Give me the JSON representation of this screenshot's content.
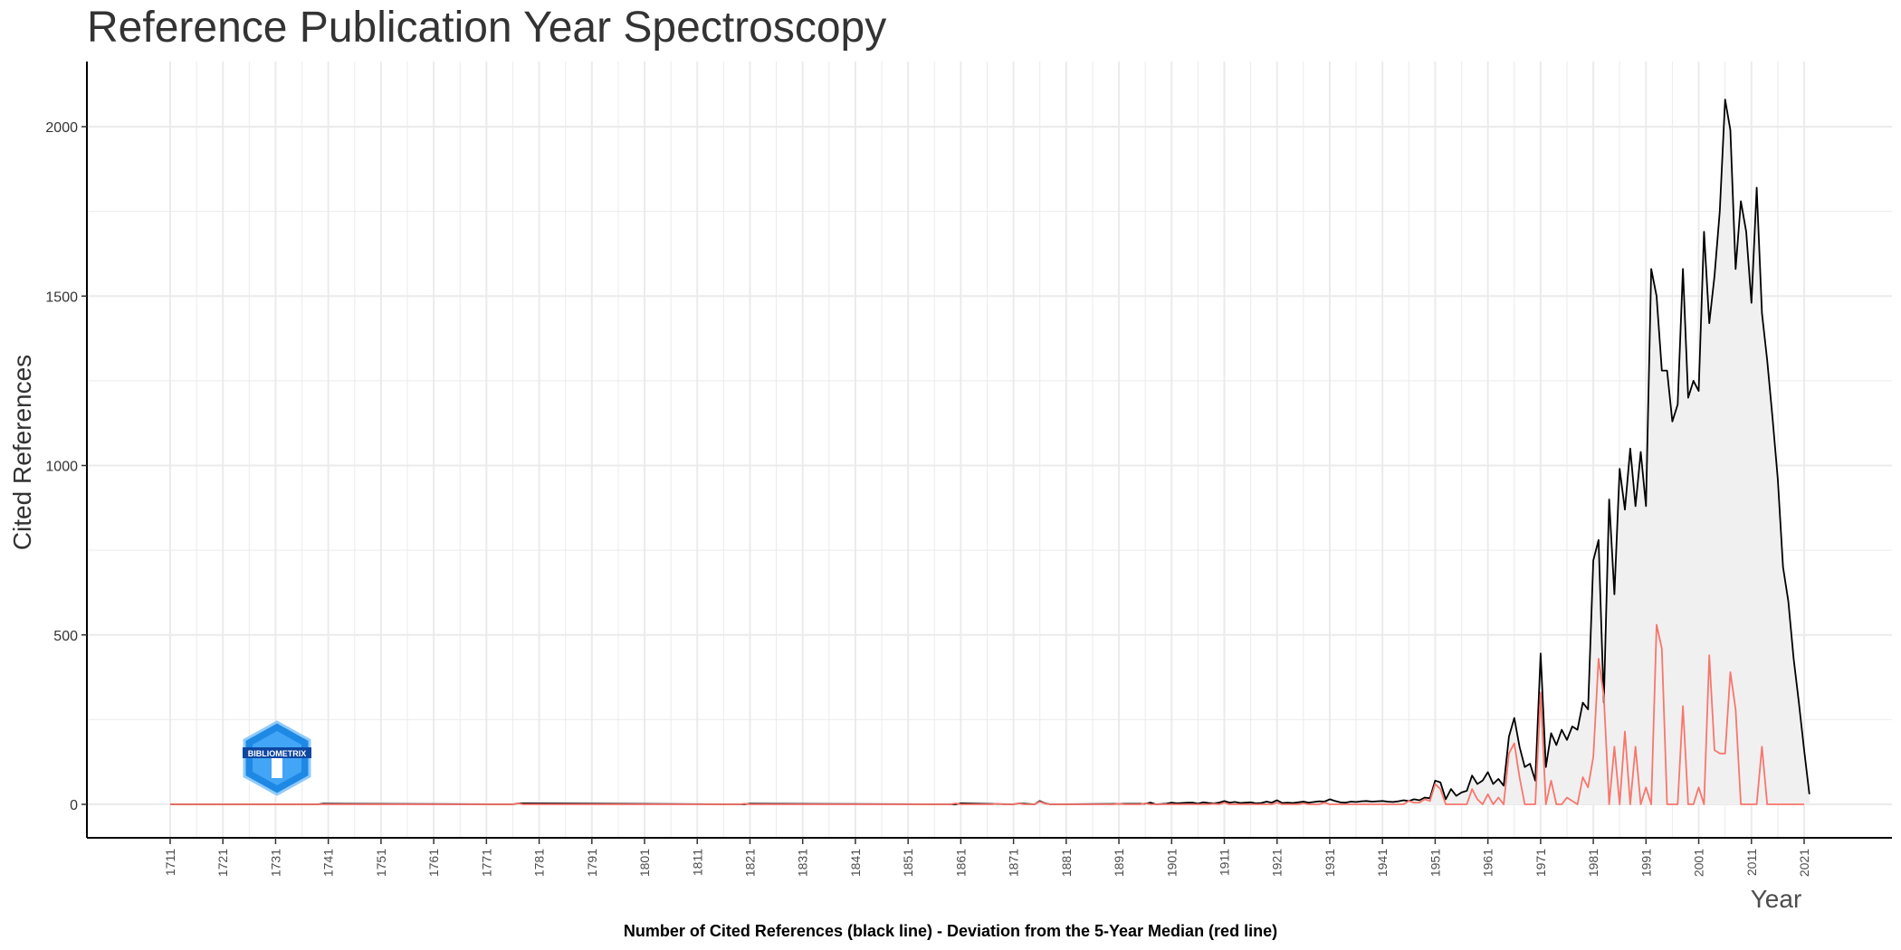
{
  "chart_data": {
    "type": "line",
    "title": "Reference Publication Year Spectroscopy",
    "xlabel": "Year",
    "ylabel": "Cited References",
    "caption": "Number of Cited References (black line) - Deviation from the 5-Year Median (red line)",
    "xlim": [
      1711,
      2022
    ],
    "ylim": [
      0,
      2100
    ],
    "x_ticks": [
      1711,
      1721,
      1731,
      1741,
      1751,
      1761,
      1771,
      1781,
      1791,
      1801,
      1811,
      1821,
      1831,
      1841,
      1851,
      1861,
      1871,
      1881,
      1891,
      1901,
      1911,
      1921,
      1931,
      1941,
      1951,
      1961,
      1971,
      1981,
      1991,
      2001,
      2011,
      2021
    ],
    "y_ticks": [
      0,
      500,
      1000,
      1500,
      2000
    ],
    "grid": true,
    "logo_text": "BIBLIOMETRIX",
    "colors": {
      "cited": "#000000",
      "deviation": "#f8766d",
      "area": "#f0f0f0",
      "grid": "#ebebeb",
      "logo": "#1e88e5"
    },
    "series": [
      {
        "name": "Number of Cited References",
        "x": [
          1711,
          1739,
          1740,
          1776,
          1777,
          1820,
          1821,
          1860,
          1861,
          1871,
          1872,
          1875,
          1876,
          1877,
          1878,
          1896,
          1897,
          1898,
          1900,
          1901,
          1902,
          1903,
          1904,
          1905,
          1906,
          1907,
          1908,
          1909,
          1910,
          1911,
          1912,
          1913,
          1914,
          1915,
          1916,
          1917,
          1918,
          1919,
          1920,
          1921,
          1922,
          1923,
          1924,
          1925,
          1926,
          1927,
          1928,
          1929,
          1930,
          1931,
          1932,
          1933,
          1934,
          1935,
          1936,
          1937,
          1938,
          1939,
          1940,
          1941,
          1942,
          1943,
          1944,
          1945,
          1946,
          1947,
          1948,
          1949,
          1950,
          1951,
          1952,
          1953,
          1954,
          1955,
          1956,
          1957,
          1958,
          1959,
          1960,
          1961,
          1962,
          1963,
          1964,
          1965,
          1966,
          1967,
          1968,
          1969,
          1970,
          1971,
          1972,
          1973,
          1974,
          1975,
          1976,
          1977,
          1978,
          1979,
          1980,
          1981,
          1982,
          1983,
          1984,
          1985,
          1986,
          1987,
          1988,
          1989,
          1990,
          1991,
          1992,
          1993,
          1994,
          1995,
          1996,
          1997,
          1998,
          1999,
          2000,
          2001,
          2002,
          2003,
          2004,
          2005,
          2006,
          2007,
          2008,
          2009,
          2010,
          2011,
          2012,
          2013,
          2014,
          2015,
          2016,
          2017,
          2018,
          2019,
          2020,
          2021,
          2022
        ],
        "values": [
          0,
          0,
          2,
          0,
          3,
          0,
          2,
          0,
          3,
          0,
          3,
          0,
          10,
          3,
          0,
          2,
          5,
          0,
          2,
          5,
          3,
          4,
          5,
          5,
          2,
          6,
          4,
          3,
          5,
          10,
          5,
          7,
          4,
          5,
          6,
          3,
          4,
          8,
          5,
          12,
          4,
          5,
          4,
          6,
          8,
          5,
          7,
          9,
          8,
          15,
          10,
          6,
          5,
          8,
          7,
          9,
          10,
          8,
          9,
          10,
          8,
          7,
          9,
          12,
          10,
          15,
          12,
          20,
          18,
          70,
          65,
          15,
          45,
          25,
          35,
          40,
          85,
          60,
          70,
          95,
          60,
          75,
          55,
          200,
          255,
          170,
          110,
          120,
          70,
          445,
          110,
          210,
          175,
          220,
          190,
          230,
          220,
          300,
          280,
          720,
          780,
          300,
          900,
          620,
          990,
          870,
          1050,
          880,
          1040,
          880,
          1580,
          1500,
          1280,
          1280,
          1130,
          1180,
          1580,
          1200,
          1250,
          1220,
          1690,
          1420,
          1560,
          1750,
          2080,
          1990,
          1580,
          1780,
          1690,
          1480,
          1820,
          1450,
          1310,
          1140,
          960,
          700,
          600,
          430,
          300,
          160,
          30
        ]
      },
      {
        "name": "Deviation from the 5-Year Median",
        "x": [
          1711,
          1776,
          1777,
          1778,
          1819,
          1820,
          1821,
          1859,
          1860,
          1861,
          1867,
          1868,
          1869,
          1871,
          1872,
          1873,
          1875,
          1876,
          1877,
          1878,
          1890,
          1891,
          1892,
          1895,
          1896,
          1897,
          1908,
          1909,
          1910,
          1911,
          1912,
          1920,
          1921,
          1922,
          1925,
          1926,
          1927,
          1929,
          1930,
          1931,
          1932,
          1945,
          1946,
          1947,
          1948,
          1949,
          1950,
          1951,
          1952,
          1953,
          1954,
          1955,
          1956,
          1957,
          1958,
          1959,
          1960,
          1961,
          1962,
          1963,
          1964,
          1965,
          1966,
          1967,
          1968,
          1969,
          1970,
          1971,
          1972,
          1973,
          1974,
          1975,
          1976,
          1977,
          1978,
          1979,
          1980,
          1981,
          1982,
          1983,
          1984,
          1985,
          1986,
          1987,
          1988,
          1989,
          1990,
          1991,
          1992,
          1993,
          1994,
          1995,
          1996,
          1997,
          1998,
          1999,
          2000,
          2001,
          2002,
          2003,
          2004,
          2005,
          2006,
          2007,
          2008,
          2009,
          2010,
          2011,
          2012,
          2013,
          2014,
          2021
        ],
        "values": [
          0,
          0,
          3,
          0,
          0,
          2,
          0,
          0,
          3,
          0,
          0,
          2,
          0,
          0,
          3,
          0,
          0,
          8,
          2,
          0,
          0,
          2,
          0,
          0,
          3,
          0,
          0,
          2,
          0,
          5,
          0,
          0,
          5,
          0,
          0,
          3,
          0,
          0,
          5,
          0,
          0,
          0,
          10,
          5,
          5,
          15,
          10,
          60,
          45,
          0,
          0,
          0,
          0,
          0,
          45,
          15,
          0,
          30,
          0,
          20,
          0,
          150,
          180,
          80,
          0,
          0,
          0,
          330,
          0,
          70,
          0,
          0,
          20,
          10,
          0,
          80,
          50,
          140,
          430,
          320,
          0,
          170,
          0,
          215,
          0,
          170,
          0,
          50,
          0,
          530,
          460,
          0,
          0,
          0,
          290,
          0,
          0,
          50,
          0,
          440,
          160,
          150,
          150,
          390,
          280,
          0,
          0,
          0,
          0,
          170,
          0,
          0
        ]
      }
    ]
  }
}
